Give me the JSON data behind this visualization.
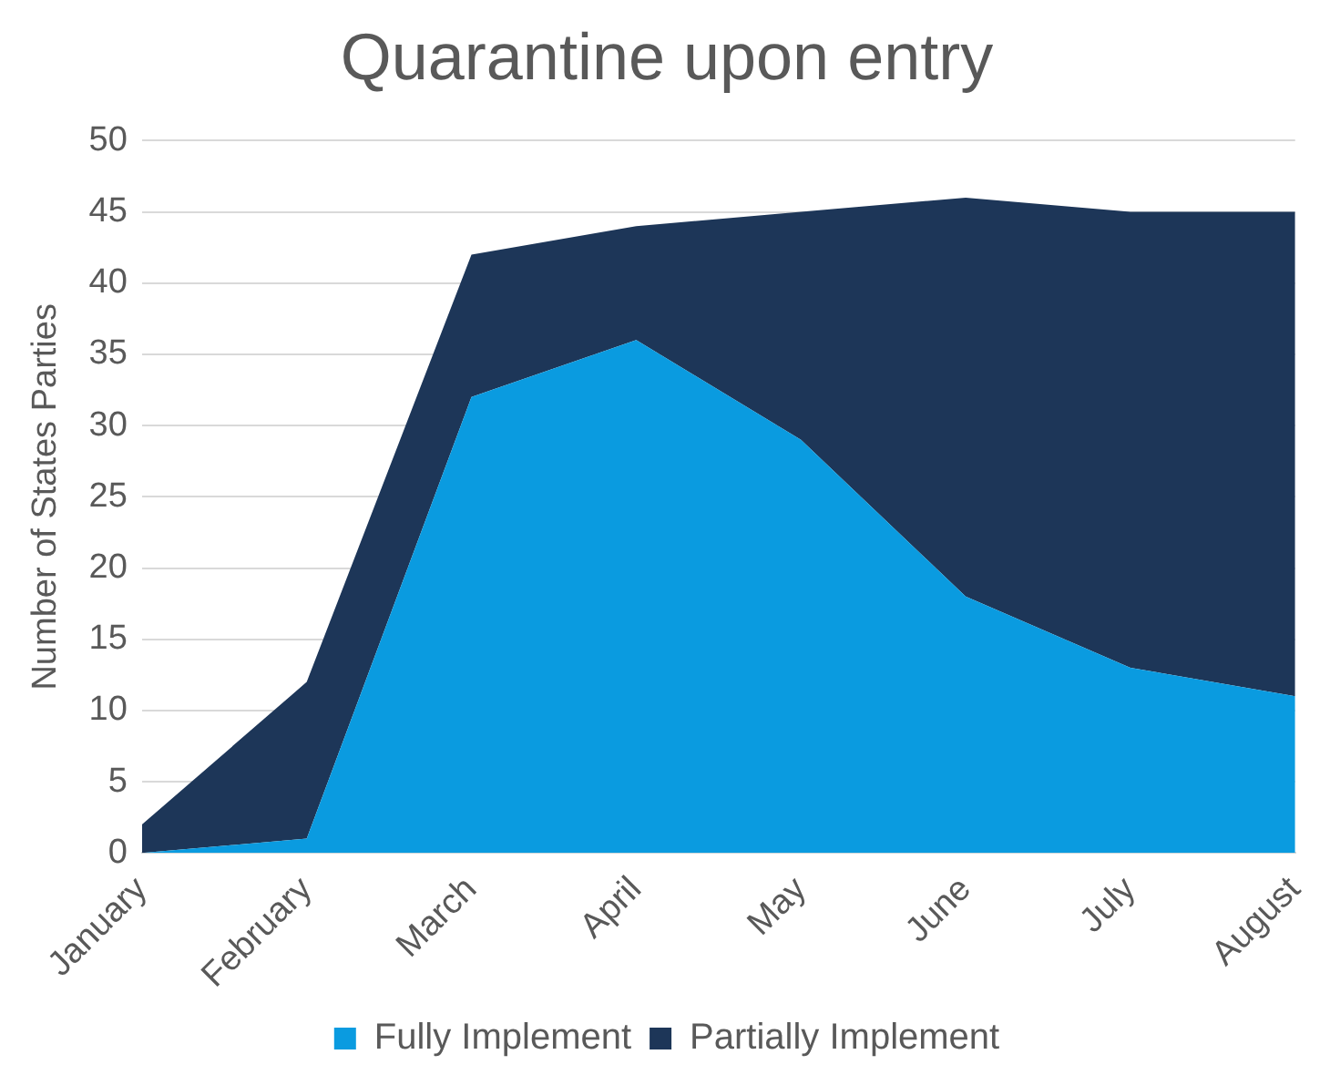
{
  "chart_data": {
    "type": "area",
    "title": "Quarantine upon entry",
    "ylabel": "Number of States Parties",
    "categories": [
      "January",
      "February",
      "March",
      "April",
      "May",
      "June",
      "July",
      "August"
    ],
    "series": [
      {
        "name": "Fully Implement",
        "color": "#0a9be0",
        "values": [
          0,
          1,
          32,
          36,
          29,
          18,
          13,
          11
        ]
      },
      {
        "name": "Partially Implement",
        "color": "#1d3658",
        "values": [
          2,
          11,
          10,
          8,
          16,
          28,
          32,
          34
        ]
      }
    ],
    "stacked": true,
    "ylim": [
      0,
      50
    ],
    "yticks": [
      0,
      5,
      10,
      15,
      20,
      25,
      30,
      35,
      40,
      45,
      50
    ],
    "grid": "y",
    "legend": "bottom"
  }
}
